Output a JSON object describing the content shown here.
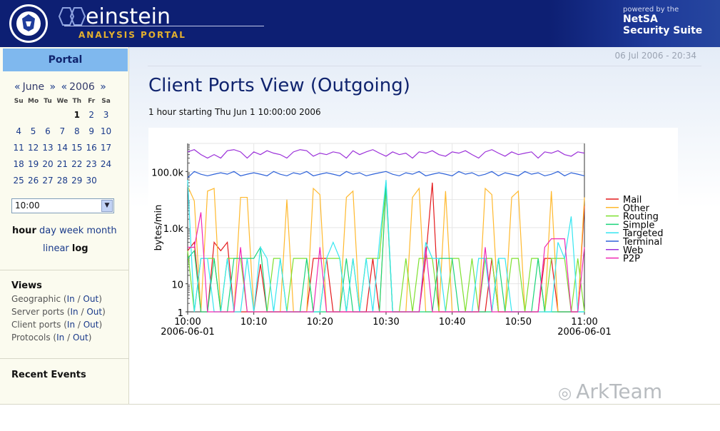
{
  "header": {
    "logo_name": "einstein",
    "logo_sub": "ANALYSIS PORTAL",
    "powered_by": "powered by the",
    "suite_line1": "NetSA",
    "suite_line2": "Security Suite"
  },
  "sidebar": {
    "portal_tab": "Portal",
    "calendar": {
      "prev_month": "«",
      "month": "June",
      "next_month": "»",
      "prev_year": "«",
      "year": "2006",
      "next_year": "»",
      "weekdays": [
        "Su",
        "Mo",
        "Tu",
        "We",
        "Th",
        "Fr",
        "Sa"
      ],
      "weeks": [
        [
          "",
          "",
          "",
          "",
          "1",
          "2",
          "3"
        ],
        [
          "4",
          "5",
          "6",
          "7",
          "8",
          "9",
          "10"
        ],
        [
          "11",
          "12",
          "13",
          "14",
          "15",
          "16",
          "17"
        ],
        [
          "18",
          "19",
          "20",
          "21",
          "22",
          "23",
          "24"
        ],
        [
          "25",
          "26",
          "27",
          "28",
          "29",
          "30",
          ""
        ]
      ],
      "selected_day": "1"
    },
    "time_select": {
      "value": "10:00"
    },
    "resolution": {
      "hour": "hour",
      "day": "day",
      "week": "week",
      "month": "month"
    },
    "scale": {
      "linear": "linear",
      "log": "log"
    },
    "views": {
      "title": "Views",
      "items": [
        {
          "label": "Geographic",
          "in": "In",
          "out": "Out"
        },
        {
          "label": "Server ports",
          "in": "In",
          "out": "Out"
        },
        {
          "label": "Client ports",
          "in": "In",
          "out": "Out"
        },
        {
          "label": "Protocols",
          "in": "In",
          "out": "Out"
        }
      ]
    },
    "recent_events": "Recent Events"
  },
  "main": {
    "datestamp": "06 Jul 2006 - 20:34",
    "title": "Client Ports View (Outgoing)",
    "subtitle": "1 hour starting Thu Jun 1 10:00:00 2006"
  },
  "watermark": "ArkTeam",
  "colors": {
    "header_bg": "#0d1f73",
    "portal_tab": "#7fb8ee",
    "link": "#1a3a8a"
  },
  "chart_data": {
    "type": "line",
    "ylabel": "bytes/min",
    "yscale": "log",
    "ylim": [
      1,
      1000000
    ],
    "yticks": [
      "1",
      "10",
      "1.0k",
      "100.0k"
    ],
    "yticks_values": [
      1,
      10,
      1000,
      100000
    ],
    "xticks": [
      "10:00",
      "10:10",
      "10:20",
      "10:30",
      "10:40",
      "10:50",
      "11:00"
    ],
    "xstart_date": "2006-06-01",
    "xend_date": "2006-06-01",
    "x": [
      0,
      1,
      2,
      3,
      4,
      5,
      6,
      7,
      8,
      9,
      10,
      11,
      12,
      13,
      14,
      15,
      16,
      17,
      18,
      19,
      20,
      21,
      22,
      23,
      24,
      25,
      26,
      27,
      28,
      29,
      30,
      31,
      32,
      33,
      34,
      35,
      36,
      37,
      38,
      39,
      40,
      41,
      42,
      43,
      44,
      45,
      46,
      47,
      48,
      49,
      50,
      51,
      52,
      53,
      54,
      55,
      56,
      57,
      58,
      59,
      60
    ],
    "series": [
      {
        "name": "Mail",
        "color": "#e41a1c",
        "values": [
          150,
          300,
          1,
          1,
          300,
          150,
          300,
          1,
          1,
          1,
          1,
          50,
          1,
          1,
          1,
          1,
          1,
          1,
          1,
          80,
          80,
          80,
          1,
          1,
          1,
          1,
          1,
          1,
          80,
          1,
          1,
          1,
          1,
          1,
          1,
          1,
          80,
          40000,
          1,
          1,
          1,
          1,
          1,
          1,
          1,
          1,
          80,
          1,
          1,
          1,
          1,
          1,
          1,
          1,
          80,
          80,
          1,
          1,
          1,
          1,
          6000
        ]
      },
      {
        "name": "Other",
        "color": "#ffb92e",
        "values": [
          30000,
          9000,
          1,
          20000,
          25000,
          1,
          1,
          1,
          12000,
          12000,
          1,
          1,
          1,
          1,
          1,
          10000,
          1,
          1,
          1,
          25000,
          15000,
          1,
          1,
          1,
          12000,
          20000,
          1,
          1,
          1,
          1,
          25000,
          1,
          1,
          1,
          12000,
          25000,
          1,
          1,
          1,
          20000,
          1,
          1,
          1,
          1,
          1,
          25000,
          15000,
          1,
          1,
          12000,
          20000,
          1,
          1,
          1,
          1,
          20000,
          1,
          1,
          1,
          1,
          12000
        ]
      },
      {
        "name": "Routing",
        "color": "#7ee030",
        "values": [
          150,
          1,
          80,
          80,
          80,
          1,
          80,
          80,
          80,
          1,
          1,
          1,
          1,
          80,
          80,
          1,
          80,
          80,
          80,
          1,
          1,
          80,
          80,
          80,
          1,
          80,
          1,
          80,
          80,
          80,
          40000,
          1,
          1,
          80,
          1,
          80,
          80,
          80,
          1,
          1,
          80,
          80,
          1,
          80,
          1,
          80,
          80,
          1,
          1,
          80,
          80,
          1,
          80,
          80,
          1,
          80,
          80,
          80,
          1,
          80,
          1
        ]
      },
      {
        "name": "Simple",
        "color": "#1bd47a",
        "values": [
          80,
          150,
          1,
          1,
          80,
          1,
          1,
          80,
          80,
          80,
          80,
          200,
          1,
          1,
          1,
          1,
          1,
          1,
          80,
          1,
          1,
          1,
          1,
          1,
          80,
          1,
          1,
          1,
          1,
          1,
          30000,
          1,
          1,
          1,
          1,
          1,
          1,
          1,
          80,
          80,
          80,
          1,
          1,
          1,
          1,
          1,
          1,
          80,
          1,
          1,
          1,
          1,
          1,
          80,
          1,
          1,
          1,
          1,
          1,
          1,
          1
        ]
      },
      {
        "name": "Targeted",
        "color": "#35e6f0",
        "values": [
          50000,
          1,
          80,
          80,
          1,
          1,
          80,
          1,
          1,
          80,
          1,
          200,
          80,
          1,
          80,
          1,
          1,
          1,
          1,
          1,
          1,
          80,
          300,
          80,
          1,
          80,
          1,
          80,
          1,
          300,
          50000,
          1,
          1,
          1,
          1,
          1,
          300,
          80,
          80,
          1,
          1,
          1,
          1,
          1,
          80,
          80,
          1,
          80,
          80,
          1,
          1,
          1,
          1,
          1,
          1,
          1,
          300,
          80,
          2500,
          1,
          1
        ]
      },
      {
        "name": "Terminal",
        "color": "#2e62d9",
        "values": [
          60000,
          100000,
          80000,
          70000,
          80000,
          90000,
          80000,
          100000,
          70000,
          80000,
          90000,
          80000,
          70000,
          100000,
          80000,
          70000,
          90000,
          80000,
          100000,
          70000,
          80000,
          90000,
          80000,
          70000,
          100000,
          80000,
          90000,
          70000,
          80000,
          90000,
          100000,
          80000,
          70000,
          90000,
          80000,
          100000,
          70000,
          80000,
          90000,
          80000,
          70000,
          100000,
          80000,
          90000,
          70000,
          80000,
          100000,
          70000,
          90000,
          80000,
          70000,
          100000,
          80000,
          90000,
          70000,
          80000,
          100000,
          70000,
          90000,
          80000,
          70000
        ]
      },
      {
        "name": "Web",
        "color": "#9b30d9",
        "values": [
          500000,
          600000,
          400000,
          300000,
          400000,
          300000,
          550000,
          600000,
          500000,
          300000,
          500000,
          400000,
          550000,
          450000,
          400000,
          300000,
          500000,
          600000,
          550000,
          350000,
          450000,
          400000,
          500000,
          450000,
          300000,
          550000,
          400000,
          500000,
          600000,
          450000,
          350000,
          500000,
          400000,
          450000,
          300000,
          500000,
          450000,
          550000,
          400000,
          350000,
          500000,
          450000,
          550000,
          400000,
          300000,
          500000,
          600000,
          450000,
          350000,
          500000,
          400000,
          450000,
          500000,
          300000,
          500000,
          450000,
          550000,
          400000,
          350000,
          500000,
          450000
        ]
      },
      {
        "name": "P2P",
        "color": "#f029b4",
        "values": [
          200,
          200,
          3500,
          1,
          1,
          1,
          1,
          1,
          200,
          1,
          1,
          1,
          1,
          1,
          1,
          1,
          1,
          1,
          1,
          1,
          200,
          1,
          1,
          1,
          1,
          1,
          1,
          1,
          1,
          1,
          1,
          1,
          1,
          1,
          1,
          1,
          200,
          1,
          1,
          1,
          1,
          1,
          1,
          1,
          1,
          200,
          1,
          1,
          1,
          1,
          1,
          1,
          1,
          1,
          200,
          400,
          400,
          400,
          1,
          1,
          200
        ]
      }
    ],
    "legend_position": "right",
    "grid": true
  }
}
